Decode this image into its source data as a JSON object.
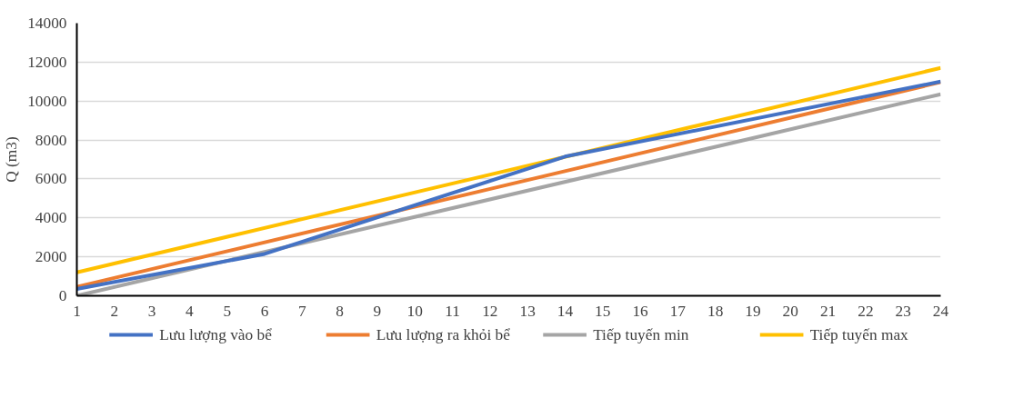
{
  "chart_data": {
    "type": "line",
    "ylabel": "Q (m3)",
    "xlim": [
      1,
      24
    ],
    "xticks": [
      1,
      2,
      3,
      4,
      5,
      6,
      7,
      8,
      9,
      10,
      11,
      12,
      13,
      14,
      15,
      16,
      17,
      18,
      19,
      20,
      21,
      22,
      23,
      24
    ],
    "ylim": [
      0,
      14000
    ],
    "yticks": [
      0,
      2000,
      4000,
      6000,
      8000,
      10000,
      12000,
      14000
    ],
    "grid": "y",
    "legend": "bottom",
    "marker": "none",
    "line_style": "solid",
    "series": [
      {
        "name": "Lưu lượng vào bể",
        "color": "#4472c4",
        "x": [
          1,
          6,
          14,
          24
        ],
        "values": [
          350,
          2150,
          7150,
          11000
        ]
      },
      {
        "name": "Lưu lượng ra khỏi bể",
        "color": "#ed7d31",
        "x": [
          1,
          24
        ],
        "values": [
          460,
          10970
        ]
      },
      {
        "name": "Tiếp tuyến min",
        "color": "#a5a5a5",
        "x": [
          1,
          24
        ],
        "values": [
          0,
          10350
        ]
      },
      {
        "name": "Tiếp tuyến max",
        "color": "#ffc000",
        "x": [
          1,
          24
        ],
        "values": [
          1200,
          11700
        ]
      }
    ]
  }
}
